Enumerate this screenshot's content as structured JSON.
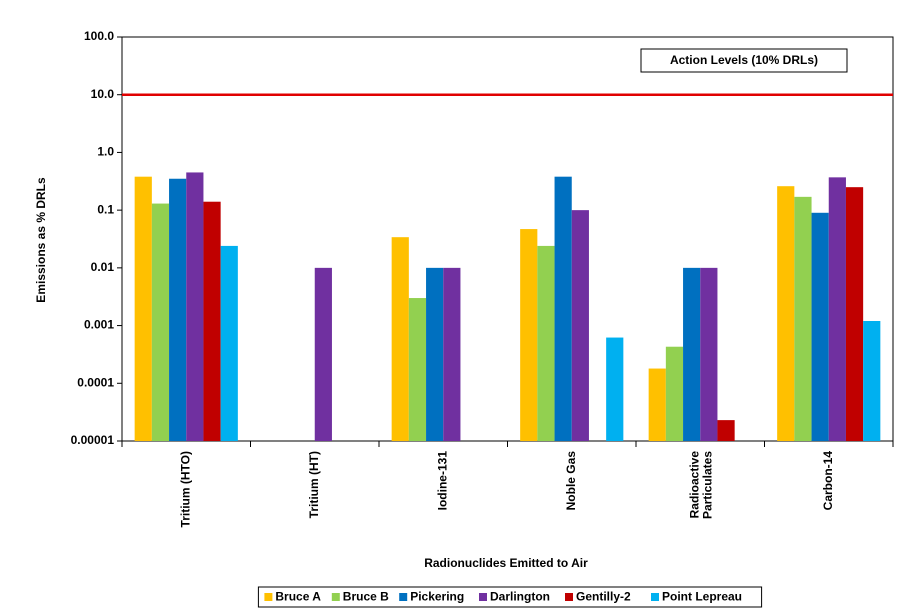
{
  "chart_data": {
    "type": "bar",
    "y_label": "Emissions as % DRLs",
    "x_label": "Radionuclides Emitted to Air",
    "categories": [
      "Tritium (HTO)",
      "Tritium (HT)",
      "Iodine-131",
      "Noble Gas",
      "Radioactive Particulates",
      "Carbon-14"
    ],
    "series": [
      {
        "name": "Bruce A",
        "color": "#ffc000",
        "values": [
          0.38,
          null,
          0.034,
          0.047,
          0.00018,
          0.26
        ]
      },
      {
        "name": "Bruce B",
        "color": "#92d050",
        "values": [
          0.13,
          null,
          0.003,
          0.024,
          0.00043,
          0.17
        ]
      },
      {
        "name": "Pickering",
        "color": "#0070c0",
        "values": [
          0.35,
          null,
          0.01,
          0.38,
          0.01,
          0.09
        ]
      },
      {
        "name": "Darlington",
        "color": "#7030a0",
        "values": [
          0.45,
          0.01,
          0.01,
          0.1,
          0.01,
          0.37
        ]
      },
      {
        "name": "Gentilly-2",
        "color": "#c00000",
        "values": [
          0.14,
          null,
          null,
          null,
          2.3e-05,
          0.25
        ]
      },
      {
        "name": "Point Lepreau",
        "color": "#00b0f0",
        "values": [
          0.024,
          null,
          null,
          0.00062,
          null,
          0.0012
        ]
      }
    ],
    "log_scale": true,
    "grid": false,
    "ylim": [
      1e-05,
      100
    ],
    "yticks": [
      1e-05,
      0.0001,
      0.001,
      0.01,
      0.1,
      {
        "value": 1,
        "label": "1.0"
      },
      {
        "value": 10,
        "label": "10.0"
      },
      {
        "value": 100,
        "label": "100.0"
      }
    ],
    "threshold": {
      "value": 10,
      "label": "Action Levels (10% DRLs)",
      "color": "#e00000"
    },
    "legend_position": "bottom"
  }
}
